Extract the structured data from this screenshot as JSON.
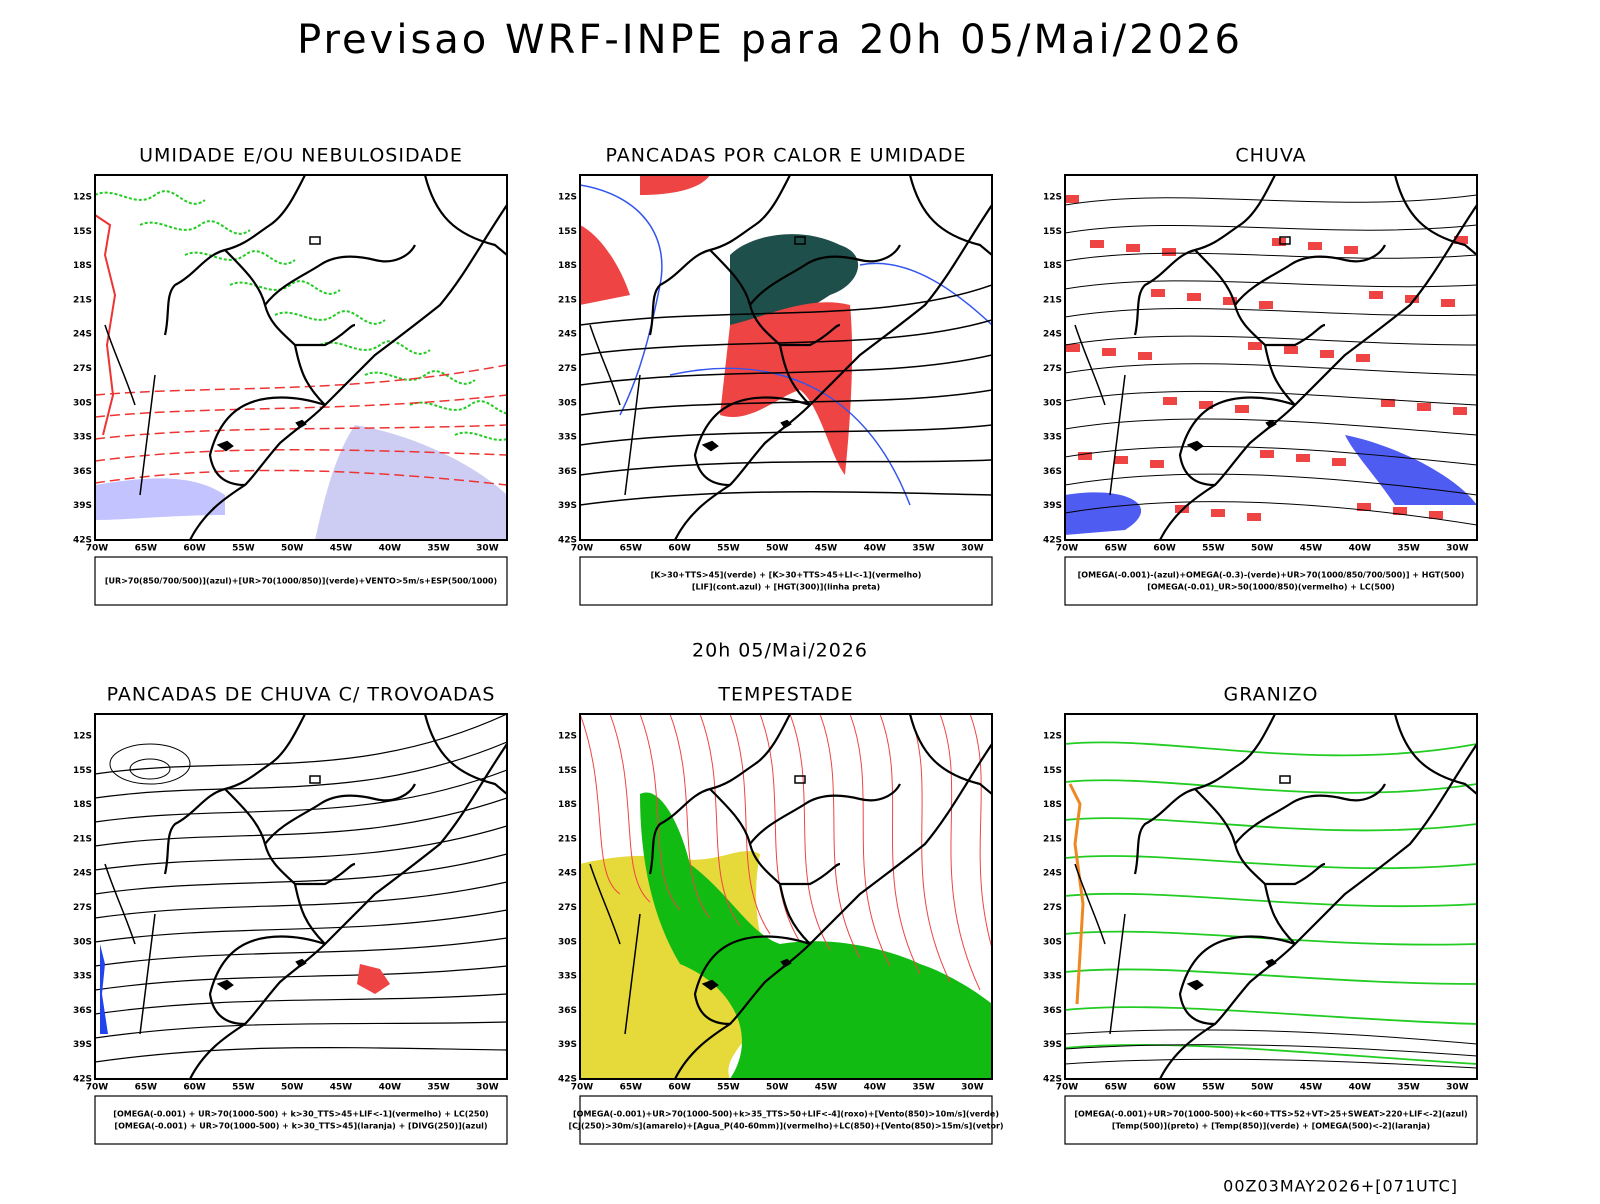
{
  "title": "Previsao WRF-INPE  para 20h 05/Mai/2026",
  "subtitle": "20h 05/Mai/2026",
  "footer": "00Z03MAY2026+[071UTC]",
  "lat_labels": [
    "12S",
    "15S",
    "18S",
    "21S",
    "24S",
    "27S",
    "30S",
    "33S",
    "36S",
    "39S",
    "42S"
  ],
  "lon_labels": [
    "70W",
    "65W",
    "60W",
    "55W",
    "50W",
    "45W",
    "40W",
    "35W",
    "30W"
  ],
  "panels": [
    {
      "title": "UMIDADE E/OU NEBULOSIDADE",
      "legend": [
        "[UR>70(850/700/500)](azul)+[UR>70(1000/850)](verde)+VENTO>5m/s+ESP(500/1000)"
      ]
    },
    {
      "title": "PANCADAS POR CALOR E UMIDADE",
      "legend": [
        "[K>30+TTS>45](verde) + [K>30+TTS>45+LI<-1](vermelho)",
        "[LIF](cont.azul) + [HGT(300)](linha preta)"
      ]
    },
    {
      "title": "CHUVA",
      "legend": [
        "[OMEGA(-0.001)-(azul)+OMEGA(-0.3)-(verde)+UR>70(1000/850/700/500)] + HGT(500)",
        "[OMEGA(-0.01)_UR>50(1000/850)(vermelho) + LC(500)"
      ]
    },
    {
      "title": "PANCADAS DE CHUVA C/ TROVOADAS",
      "legend": [
        "[OMEGA(-0.001) + UR>70(1000-500) + k>30_TTS>45+LIF<-1](vermelho) + LC(250)",
        "[OMEGA(-0.001) + UR>70(1000-500) + k>30_TTS>45](laranja) + [DIVG(250)](azul)"
      ]
    },
    {
      "title": "TEMPESTADE",
      "legend": [
        "[OMEGA(-0.001)+UR>70(1000-500)+k>35_TTS>50+LIF<-4](roxo)+[Vento(850)>10m/s](verde)",
        "[CJ(250)>30m/s](amarelo)+[Agua_P(40-60mm)](vermelho)+LC(850)+[Vento(850)>15m/s](vetor)"
      ]
    },
    {
      "title": "GRANIZO",
      "legend": [
        "[OMEGA(-0.001)+UR>70(1000-500)+k<60+TTS>52+VT>25+SWEAT>220+LIF<-2](azul)",
        "[Temp(500)](preto) + [Temp(850)](verde) + [OMEGA(500)<-2](laranja)"
      ]
    }
  ]
}
